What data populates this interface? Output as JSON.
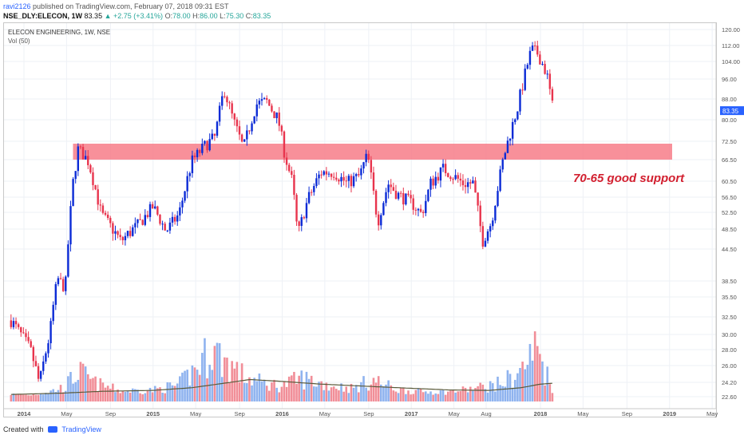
{
  "header": {
    "username": "ravi2126",
    "published_text": "published on TradingView.com, February 07, 2018 09:31 EST"
  },
  "symbol_bar": {
    "symbol": "NSE_DLY:ELECON, 1W",
    "last": "83.35",
    "change": "▲ +2.75 (+3.41%)",
    "open_label": "O:",
    "open": "78.00",
    "high_label": "H:",
    "high": "86.00",
    "low_label": "L:",
    "low": "75.30",
    "close_label": "C:",
    "close": "83.35"
  },
  "footer": {
    "created_with": "Created with",
    "brand": "TradingView"
  },
  "colors": {
    "up": "#0b2bd6",
    "down": "#e8344d",
    "vol_up": "#8fb3ef",
    "vol_down": "#f18e98",
    "ma": "#5a5a3a",
    "zone": "#f77d88",
    "annotation": "#d21f2f"
  },
  "chart_data": {
    "type": "candlestick",
    "title": "ELECON ENGINEERING, 1W, NSE",
    "volume_label": "Vol (50)",
    "last_price_label": "83.35",
    "y_ticks": [
      "120.00",
      "112.00",
      "104.00",
      "96.00",
      "88.00",
      "80.00",
      "72.50",
      "66.50",
      "60.50",
      "56.50",
      "52.50",
      "48.50",
      "44.50",
      "38.50",
      "35.50",
      "32.50",
      "30.00",
      "28.00",
      "26.00",
      "24.20",
      "22.60"
    ],
    "x_ticks": [
      "2014",
      "May",
      "Sep",
      "2015",
      "May",
      "Sep",
      "2016",
      "May",
      "Sep",
      "2017",
      "May",
      "Aug",
      "2018",
      "May",
      "Sep",
      "2019",
      "May"
    ],
    "support_zone": [
      66,
      72
    ],
    "annotation": "70-65 good support",
    "ohlc_anchors": [
      [
        2013.9,
        32
      ],
      [
        2014.05,
        28
      ],
      [
        2014.12,
        24
      ],
      [
        2014.2,
        30
      ],
      [
        2014.26,
        39
      ],
      [
        2014.32,
        37
      ],
      [
        2014.38,
        60
      ],
      [
        2014.42,
        70
      ],
      [
        2014.5,
        66
      ],
      [
        2014.6,
        52
      ],
      [
        2014.75,
        46
      ],
      [
        2014.9,
        50
      ],
      [
        2015.0,
        54
      ],
      [
        2015.1,
        48
      ],
      [
        2015.2,
        52
      ],
      [
        2015.3,
        66
      ],
      [
        2015.4,
        71
      ],
      [
        2015.48,
        74
      ],
      [
        2015.55,
        92
      ],
      [
        2015.62,
        80
      ],
      [
        2015.7,
        70
      ],
      [
        2015.8,
        86
      ],
      [
        2015.88,
        87
      ],
      [
        2015.97,
        80
      ],
      [
        2016.02,
        68
      ],
      [
        2016.08,
        60
      ],
      [
        2016.12,
        47
      ],
      [
        2016.2,
        56
      ],
      [
        2016.3,
        63
      ],
      [
        2016.4,
        63
      ],
      [
        2016.5,
        60
      ],
      [
        2016.6,
        62
      ],
      [
        2016.66,
        68
      ],
      [
        2016.74,
        50
      ],
      [
        2016.82,
        60
      ],
      [
        2016.9,
        57
      ],
      [
        2017.0,
        55
      ],
      [
        2017.08,
        52
      ],
      [
        2017.15,
        60
      ],
      [
        2017.25,
        64
      ],
      [
        2017.4,
        60
      ],
      [
        2017.48,
        60
      ],
      [
        2017.55,
        46
      ],
      [
        2017.62,
        50
      ],
      [
        2017.72,
        68
      ],
      [
        2017.82,
        84
      ],
      [
        2017.88,
        98
      ],
      [
        2017.93,
        110
      ],
      [
        2017.98,
        108
      ],
      [
        2018.05,
        98
      ],
      [
        2018.1,
        83
      ]
    ],
    "volume_anchors": [
      [
        2013.9,
        22.9
      ],
      [
        2014.05,
        22.8
      ],
      [
        2014.2,
        23.2
      ],
      [
        2014.32,
        23.8
      ],
      [
        2014.42,
        25.6
      ],
      [
        2014.55,
        24.2
      ],
      [
        2014.75,
        23.3
      ],
      [
        2015.0,
        23.4
      ],
      [
        2015.2,
        24.0
      ],
      [
        2015.35,
        26.2
      ],
      [
        2015.45,
        28.8
      ],
      [
        2015.55,
        27.0
      ],
      [
        2015.7,
        25.0
      ],
      [
        2015.85,
        24.2
      ],
      [
        2016.0,
        23.9
      ],
      [
        2016.15,
        24.8
      ],
      [
        2016.35,
        24.0
      ],
      [
        2016.55,
        23.6
      ],
      [
        2016.7,
        24.6
      ],
      [
        2016.9,
        23.4
      ],
      [
        2017.1,
        23.2
      ],
      [
        2017.3,
        23.2
      ],
      [
        2017.5,
        23.6
      ],
      [
        2017.7,
        24.2
      ],
      [
        2017.85,
        25.6
      ],
      [
        2017.92,
        27.4
      ],
      [
        2017.97,
        29.0
      ],
      [
        2018.05,
        25.2
      ],
      [
        2018.1,
        23.4
      ]
    ],
    "ma_anchors": [
      [
        2013.9,
        22.85
      ],
      [
        2014.3,
        23.0
      ],
      [
        2014.6,
        23.2
      ],
      [
        2015.0,
        23.3
      ],
      [
        2015.3,
        23.6
      ],
      [
        2015.55,
        24.1
      ],
      [
        2015.75,
        24.5
      ],
      [
        2016.0,
        24.3
      ],
      [
        2016.3,
        24.0
      ],
      [
        2016.6,
        23.8
      ],
      [
        2016.9,
        23.6
      ],
      [
        2017.3,
        23.35
      ],
      [
        2017.6,
        23.3
      ],
      [
        2017.85,
        23.6
      ],
      [
        2018.0,
        24.0
      ],
      [
        2018.1,
        24.1
      ]
    ]
  }
}
